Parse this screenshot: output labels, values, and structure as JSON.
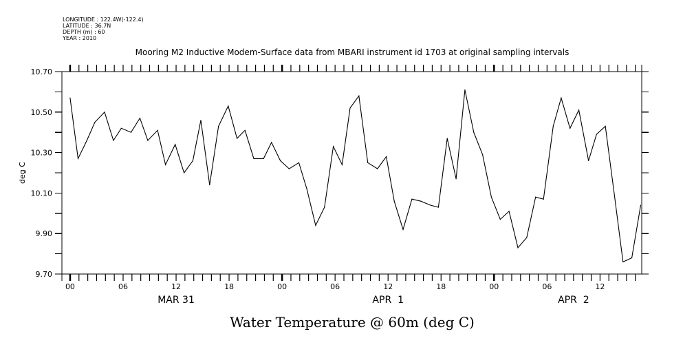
{
  "header": {
    "longitude": "LONGITUDE : 122.4W(-122.4)",
    "latitude": "LATITUDE : 36.7N",
    "depth": "DEPTH (m) : 60",
    "year": "YEAR : 2010"
  },
  "chart_data": {
    "type": "line",
    "title": "Mooring M2 Inductive Modem-Surface data from MBARI instrument id 1703 at original sampling intervals",
    "xlabel": "Water Temperature @ 60m (deg C)",
    "ylabel": "deg C",
    "x_units": "hours since MAR 31 00:00",
    "xlim": [
      -0.93,
      64.72
    ],
    "ylim": [
      9.7,
      10.7
    ],
    "grid": false,
    "y_ticks": [
      9.7,
      9.9,
      10.1,
      10.3,
      10.5,
      10.7
    ],
    "y_tick_labels": [
      "9.70",
      "9.90",
      "10.10",
      "10.30",
      "10.50",
      "10.70"
    ],
    "y_minor_step": 0.1,
    "x_tick_step_hours": 1,
    "x_labeled_ticks": [
      {
        "hour": 0,
        "label": "00"
      },
      {
        "hour": 6,
        "label": "06"
      },
      {
        "hour": 12,
        "label": "12"
      },
      {
        "hour": 18,
        "label": "18"
      },
      {
        "hour": 24,
        "label": "00"
      },
      {
        "hour": 30,
        "label": "06"
      },
      {
        "hour": 36,
        "label": "12"
      },
      {
        "hour": 42,
        "label": "18"
      },
      {
        "hour": 48,
        "label": "00"
      },
      {
        "hour": 54,
        "label": "06"
      },
      {
        "hour": 60,
        "label": "12"
      }
    ],
    "x_date_labels": [
      {
        "hour": 12,
        "label": "MAR 31"
      },
      {
        "hour": 36,
        "label": "APR  1"
      },
      {
        "hour": 57,
        "label": "APR  2"
      }
    ],
    "series": [
      {
        "name": "Water Temperature @ 60m",
        "color": "#000000",
        "x": [
          0.0,
          0.9,
          1.9,
          2.8,
          3.9,
          4.9,
          5.8,
          6.9,
          7.9,
          8.8,
          9.9,
          10.8,
          11.9,
          12.9,
          13.9,
          14.8,
          15.8,
          16.8,
          17.9,
          18.9,
          19.8,
          20.8,
          21.9,
          22.8,
          23.8,
          24.8,
          25.9,
          26.8,
          27.8,
          28.8,
          29.8,
          30.8,
          31.7,
          32.7,
          33.7,
          34.8,
          35.8,
          36.7,
          37.7,
          38.7,
          39.7,
          40.8,
          41.7,
          42.7,
          43.7,
          44.7,
          45.7,
          46.7,
          47.7,
          48.7,
          49.7,
          50.7,
          51.7,
          52.7,
          53.6,
          54.7,
          55.6,
          56.6,
          57.6,
          58.7,
          59.6,
          60.6,
          61.6,
          62.6,
          63.6,
          64.6
        ],
        "y": [
          10.57,
          10.27,
          10.36,
          10.45,
          10.5,
          10.36,
          10.42,
          10.4,
          10.47,
          10.36,
          10.41,
          10.24,
          10.34,
          10.2,
          10.26,
          10.46,
          10.14,
          10.43,
          10.53,
          10.37,
          10.41,
          10.27,
          10.27,
          10.35,
          10.26,
          10.22,
          10.25,
          10.12,
          9.94,
          10.03,
          10.33,
          10.24,
          10.52,
          10.58,
          10.25,
          10.22,
          10.28,
          10.06,
          9.92,
          10.07,
          10.06,
          10.04,
          10.03,
          10.37,
          10.17,
          10.61,
          10.4,
          10.29,
          10.08,
          9.97,
          10.01,
          9.83,
          9.88,
          10.08,
          10.07,
          10.43,
          10.57,
          10.42,
          10.51,
          10.26,
          10.39,
          10.43,
          10.1,
          9.76,
          9.78,
          10.04
        ]
      }
    ]
  }
}
